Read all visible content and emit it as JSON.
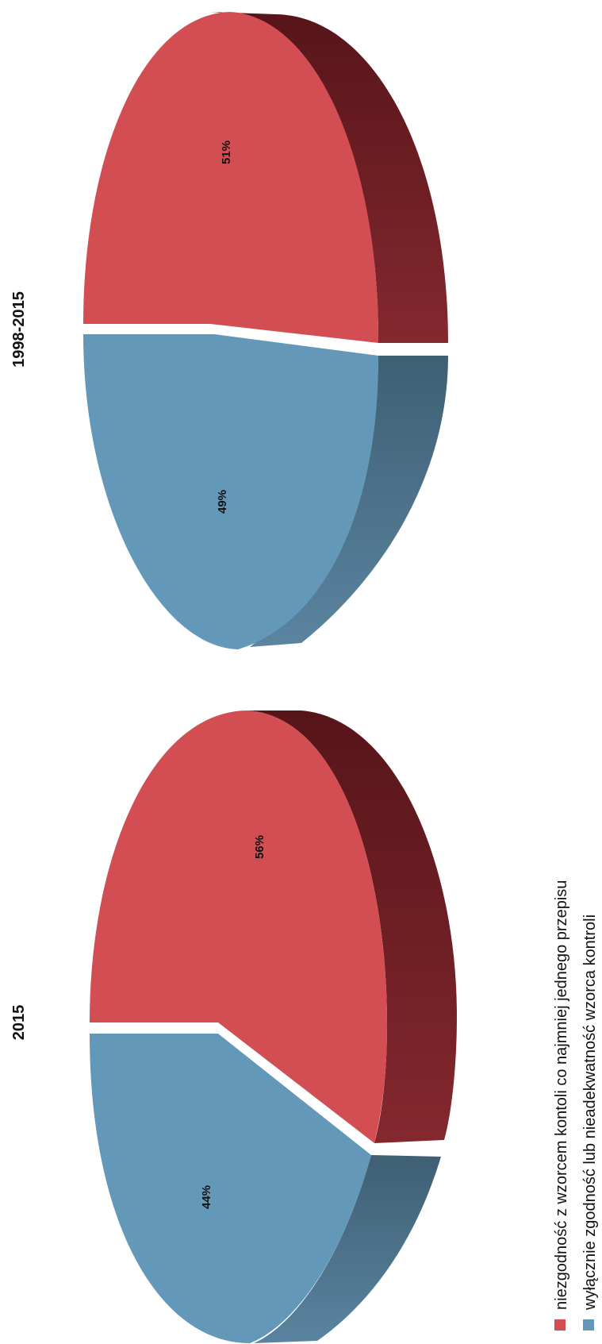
{
  "chart_data": [
    {
      "type": "pie",
      "title": "1998-2015",
      "slices": [
        {
          "label": "niezgodność z wzorcem kontoli co najmniej jednego przepisu",
          "value": 51,
          "display": "51%",
          "color": "#d34e53"
        },
        {
          "label": "wyłącznie zgodność lub nieadekwatność wzorca kontroli",
          "value": 49,
          "display": "49%",
          "color": "#6498b9"
        }
      ]
    },
    {
      "type": "pie",
      "title": "2015",
      "slices": [
        {
          "label": "niezgodność z wzorcem kontoli co najmniej jednego przepisu",
          "value": 56,
          "display": "56%",
          "color": "#d34e53"
        },
        {
          "label": "wyłącznie zgodność lub nieadekwatność wzorca kontroli",
          "value": 44,
          "display": "44%",
          "color": "#6498b9"
        }
      ]
    }
  ],
  "legend": {
    "placement": "bottom-right",
    "items": [
      {
        "label": "niezgodność z wzorcem kontoli co najmniej jednego przepisu",
        "color": "#d34e53"
      },
      {
        "label": "wyłącznie zgodność lub nieadekwatność wzorca kontroli",
        "color": "#6498b9"
      }
    ]
  }
}
